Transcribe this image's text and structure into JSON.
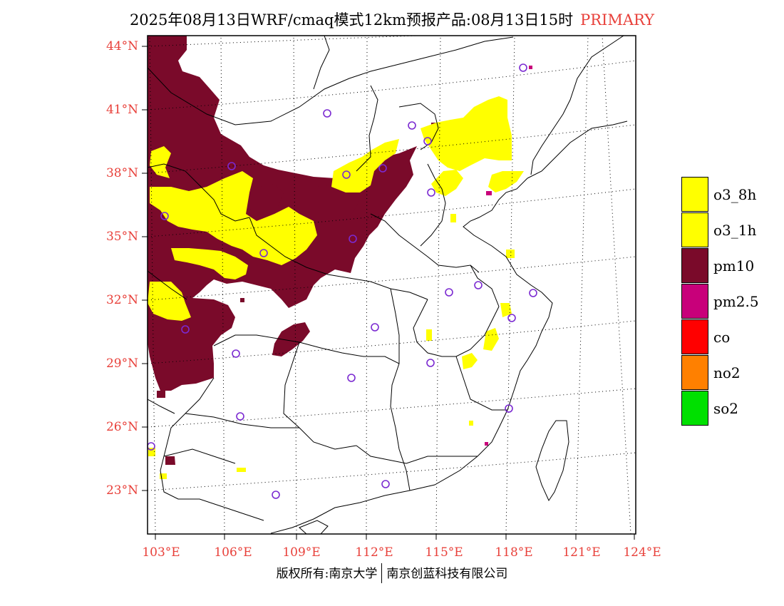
{
  "title": {
    "text": "2025年08月13日WRF/cmaq模式12km预报产品:08月13日15时",
    "tag": "PRIMARY",
    "tag_color": "#e8403a"
  },
  "map": {
    "lat_labels": [
      "44°N",
      "41°N",
      "38°N",
      "35°N",
      "32°N",
      "29°N",
      "26°N",
      "23°N"
    ],
    "lon_labels": [
      "103°E",
      "106°E",
      "109°E",
      "112°E",
      "115°E",
      "118°E",
      "121°E",
      "124°E"
    ],
    "label_color": "#e8403a",
    "boundary_color": "#000000",
    "grid_style": "dotted",
    "station_marker_color": "#7b2ad1",
    "station_marker_shape": "open-circle"
  },
  "legend": [
    {
      "label": "o3_8h",
      "color": "#ffff00"
    },
    {
      "label": "o3_1h",
      "color": "#ffff00"
    },
    {
      "label": "pm10",
      "color": "#7a0a2a"
    },
    {
      "label": "pm2.5",
      "color": "#c8007a"
    },
    {
      "label": "co",
      "color": "#ff0000"
    },
    {
      "label": "no2",
      "color": "#ff8000"
    },
    {
      "label": "so2",
      "color": "#00e000"
    }
  ],
  "footer": {
    "left": "版权所有:南京大学",
    "right": "南京创蓝科技有限公司"
  }
}
